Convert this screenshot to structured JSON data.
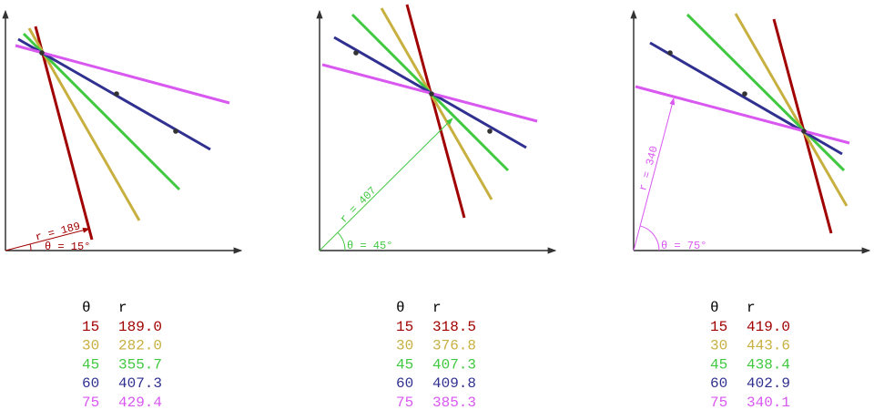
{
  "colors": {
    "15": "#a00000",
    "30": "#c8b040",
    "45": "#40c840",
    "60": "#303090",
    "75": "#d858f0",
    "axis": "#000000",
    "point": "#333333"
  },
  "panels": [
    {
      "annotation": {
        "r_label": "r = 189",
        "theta_label": "θ = 15°",
        "theta": 15
      },
      "table": {
        "header": [
          "θ",
          "r"
        ],
        "rows": [
          [
            "15",
            "189.0"
          ],
          [
            "30",
            "282.0"
          ],
          [
            "45",
            "355.7"
          ],
          [
            "60",
            "407.3"
          ],
          [
            "75",
            "429.4"
          ]
        ]
      }
    },
    {
      "annotation": {
        "r_label": "r = 407",
        "theta_label": "θ = 45°",
        "theta": 45
      },
      "table": {
        "header": [
          "θ",
          "r"
        ],
        "rows": [
          [
            "15",
            "318.5"
          ],
          [
            "30",
            "376.8"
          ],
          [
            "45",
            "407.3"
          ],
          [
            "60",
            "409.8"
          ],
          [
            "75",
            "385.3"
          ]
        ]
      }
    },
    {
      "annotation": {
        "r_label": "r = 340",
        "theta_label": "θ = 75°",
        "theta": 75
      },
      "table": {
        "header": [
          "θ",
          "r"
        ],
        "rows": [
          [
            "15",
            "419.0"
          ],
          [
            "30",
            "443.6"
          ],
          [
            "45",
            "438.4"
          ],
          [
            "60",
            "402.9"
          ],
          [
            "75",
            "340.1"
          ]
        ]
      }
    }
  ]
}
